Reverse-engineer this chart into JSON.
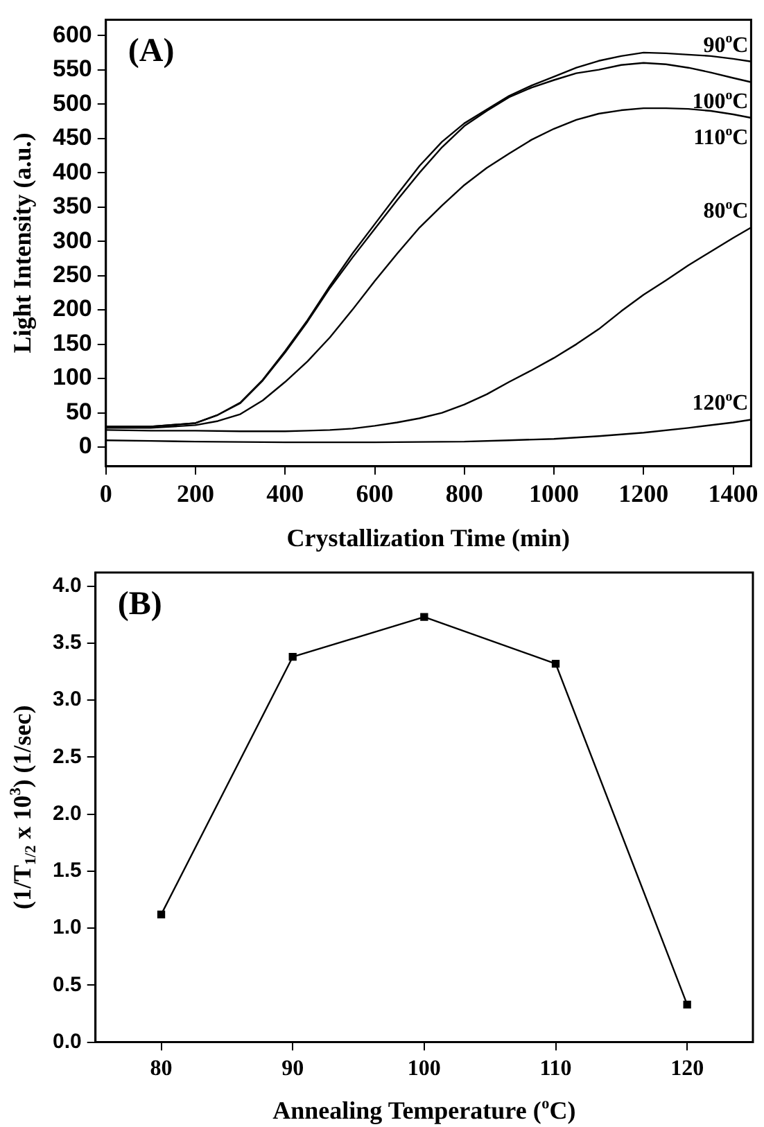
{
  "chart_data": [
    {
      "type": "line",
      "xlabel": "Crystallization Time (min)",
      "ylabel": "Light Intensity (a.u.)",
      "annotations": [
        "(A)"
      ],
      "xlim": [
        0,
        1440
      ],
      "ylim": [
        -28,
        623
      ],
      "xticks": [
        0,
        200,
        400,
        600,
        800,
        1000,
        1200,
        1400
      ],
      "yticks": [
        0,
        50,
        100,
        150,
        200,
        250,
        300,
        350,
        400,
        450,
        500,
        550,
        600
      ],
      "grid": false,
      "legend": false,
      "marker": "none",
      "line_style": "solid",
      "series": [
        {
          "name": "90$^{o}$C",
          "color": "#000000",
          "x": [
            0,
            100,
            200,
            250,
            300,
            350,
            400,
            450,
            500,
            550,
            600,
            650,
            700,
            750,
            800,
            850,
            900,
            950,
            1000,
            1050,
            1100,
            1150,
            1200,
            1250,
            1300,
            1350,
            1400,
            1440
          ],
          "values": [
            30,
            30,
            35,
            47,
            65,
            98,
            140,
            185,
            235,
            282,
            325,
            368,
            410,
            445,
            472,
            492,
            512,
            527,
            540,
            553,
            563,
            570,
            575,
            574,
            572,
            570,
            566,
            562
          ]
        },
        {
          "name": "100$^{o}$C",
          "color": "#000000",
          "x": [
            0,
            100,
            200,
            250,
            300,
            350,
            400,
            450,
            500,
            550,
            600,
            650,
            700,
            750,
            800,
            850,
            900,
            950,
            1000,
            1050,
            1100,
            1150,
            1200,
            1250,
            1300,
            1350,
            1400,
            1440
          ],
          "values": [
            30,
            30,
            35,
            47,
            64,
            97,
            138,
            183,
            232,
            276,
            318,
            360,
            400,
            437,
            468,
            490,
            510,
            524,
            535,
            545,
            550,
            557,
            560,
            558,
            553,
            546,
            538,
            532
          ]
        },
        {
          "name": "110$^{o}$C",
          "color": "#000000",
          "x": [
            0,
            100,
            200,
            250,
            300,
            350,
            400,
            450,
            500,
            550,
            600,
            650,
            700,
            750,
            800,
            850,
            900,
            950,
            1000,
            1050,
            1100,
            1150,
            1200,
            1250,
            1300,
            1350,
            1400,
            1440
          ],
          "values": [
            28,
            28,
            32,
            38,
            48,
            68,
            95,
            125,
            160,
            200,
            242,
            282,
            320,
            352,
            382,
            407,
            428,
            448,
            464,
            477,
            486,
            491,
            494,
            494,
            493,
            490,
            485,
            480
          ]
        },
        {
          "name": "80$^{o}$C",
          "color": "#000000",
          "x": [
            0,
            100,
            200,
            300,
            400,
            450,
            500,
            550,
            600,
            650,
            700,
            750,
            800,
            850,
            900,
            950,
            1000,
            1050,
            1100,
            1150,
            1200,
            1250,
            1300,
            1350,
            1400,
            1440
          ],
          "values": [
            25,
            24,
            24,
            23,
            23,
            24,
            25,
            27,
            31,
            36,
            42,
            50,
            62,
            77,
            95,
            112,
            130,
            150,
            172,
            198,
            222,
            243,
            265,
            285,
            305,
            320
          ]
        },
        {
          "name": "120$^{o}$C",
          "color": "#000000",
          "x": [
            0,
            100,
            200,
            400,
            600,
            800,
            900,
            1000,
            1100,
            1200,
            1300,
            1400,
            1440
          ],
          "values": [
            10,
            9,
            8,
            7,
            7,
            8,
            10,
            12,
            16,
            21,
            28,
            36,
            40
          ]
        }
      ]
    },
    {
      "type": "line",
      "xlabel": "Annealing Temperature ($^{o}$C)",
      "ylabel": "(1/T$_{1/2}$ x 10$^{3}$) (1/sec)",
      "annotations": [
        "(B)"
      ],
      "xlim": [
        75,
        125
      ],
      "ylim": [
        0,
        4.12
      ],
      "xticks": [
        80,
        90,
        100,
        110,
        120
      ],
      "yticks": [
        {
          "value": 0,
          "label": "0.0"
        },
        0.5,
        {
          "value": 1,
          "label": "1.0"
        },
        1.5,
        {
          "value": 2,
          "label": "2.0"
        },
        2.5,
        {
          "value": 3,
          "label": "3.0"
        },
        3.5,
        {
          "value": 4,
          "label": "4.0"
        }
      ],
      "grid": false,
      "legend": false,
      "marker": "square",
      "line_style": "solid",
      "series": [
        {
          "color": "#000000",
          "x": [
            80,
            90,
            100,
            110,
            120
          ],
          "values": [
            1.12,
            3.38,
            3.73,
            3.32,
            0.33
          ]
        }
      ]
    }
  ]
}
